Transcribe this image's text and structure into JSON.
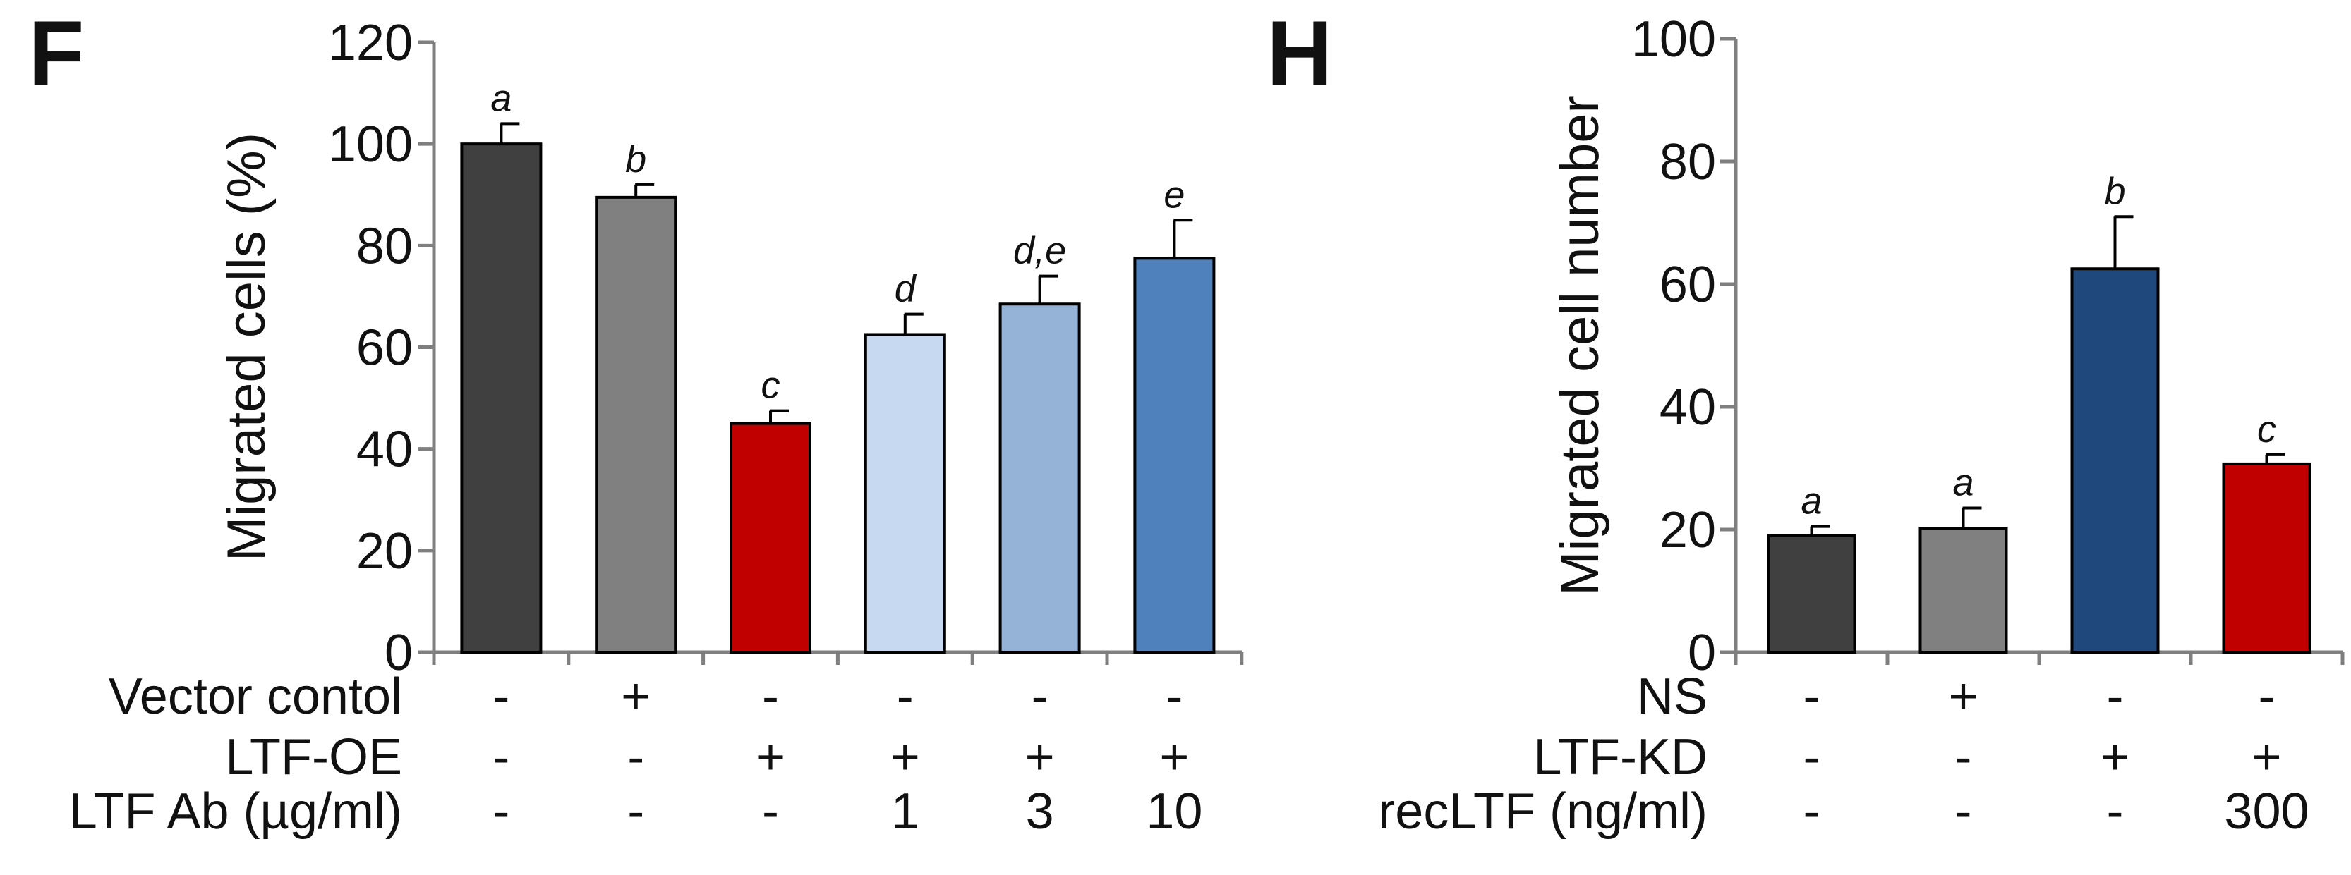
{
  "chart_data": [
    {
      "panel": "F",
      "type": "bar",
      "ylabel": "Migrated cells (%)",
      "ylim": [
        0,
        120
      ],
      "yticks": [
        0,
        20,
        40,
        60,
        80,
        100,
        120
      ],
      "bars": [
        {
          "value": 100,
          "error": 4,
          "sig": "a",
          "color": "#404040"
        },
        {
          "value": 89.5,
          "error": 2.5,
          "sig": "b",
          "color": "#808080"
        },
        {
          "value": 45,
          "error": 2.5,
          "sig": "c",
          "color": "#c00000"
        },
        {
          "value": 62.5,
          "error": 4,
          "sig": "d",
          "color": "#c6d9f1"
        },
        {
          "value": 68.5,
          "error": 5.5,
          "sig": "d,e",
          "color": "#95b3d7"
        },
        {
          "value": 77.5,
          "error": 7.5,
          "sig": "e",
          "color": "#4f81bd"
        }
      ],
      "conditions": [
        {
          "label": "Vector contol",
          "values": [
            "-",
            "+",
            "-",
            "-",
            "-",
            "-"
          ]
        },
        {
          "label": "LTF-OE",
          "values": [
            "-",
            "-",
            "+",
            "+",
            "+",
            "+"
          ]
        },
        {
          "label": "LTF Ab (µg/ml)",
          "values": [
            "-",
            "-",
            "-",
            "1",
            "3",
            "10"
          ]
        }
      ]
    },
    {
      "panel": "H",
      "type": "bar",
      "ylabel": "Migrated cell number",
      "ylim": [
        0,
        100
      ],
      "yticks": [
        0,
        20,
        40,
        60,
        80,
        100
      ],
      "bars": [
        {
          "value": 19,
          "error": 1.5,
          "sig": "a",
          "color": "#404040"
        },
        {
          "value": 20.2,
          "error": 3.3,
          "sig": "a",
          "color": "#808080"
        },
        {
          "value": 62.5,
          "error": 8.5,
          "sig": "b",
          "color": "#1f497d"
        },
        {
          "value": 30.7,
          "error": 1.5,
          "sig": "c",
          "color": "#c00000"
        }
      ],
      "conditions": [
        {
          "label": "NS",
          "values": [
            "-",
            "+",
            "-",
            "-"
          ]
        },
        {
          "label": "LTF-KD",
          "values": [
            "-",
            "-",
            "+",
            "+"
          ]
        },
        {
          "label": "recLTF (ng/ml)",
          "values": [
            "-",
            "-",
            "-",
            "300"
          ]
        }
      ]
    }
  ]
}
